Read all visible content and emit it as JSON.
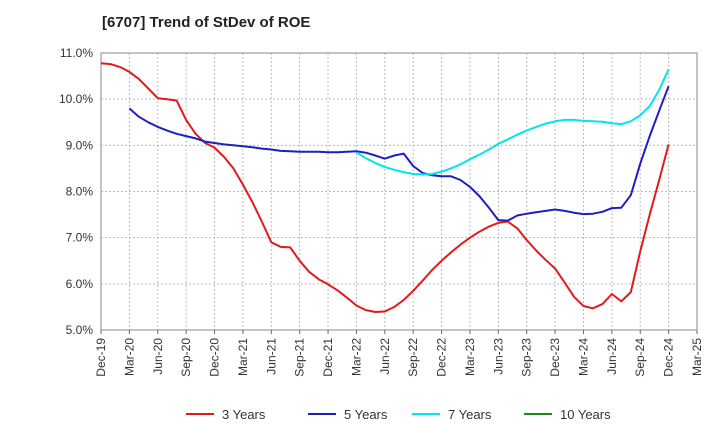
{
  "chart_data": {
    "type": "line",
    "title": "[6707]  Trend of StDev of ROE",
    "xlabel": "",
    "ylabel": "",
    "ylim": [
      5.0,
      11.0
    ],
    "grid": true,
    "legend_position": "bottom",
    "x_tick_labels": [
      "Dec-19",
      "Mar-20",
      "Jun-20",
      "Sep-20",
      "Dec-20",
      "Mar-21",
      "Jun-21",
      "Sep-21",
      "Dec-21",
      "Mar-22",
      "Jun-22",
      "Sep-22",
      "Dec-22",
      "Mar-23",
      "Jun-23",
      "Sep-23",
      "Dec-23",
      "Mar-24",
      "Jun-24",
      "Sep-24",
      "Dec-24",
      "Mar-25"
    ],
    "y_tick_labels": [
      "11.0%",
      "10.0%",
      "9.0%",
      "8.0%",
      "7.0%",
      "6.0%",
      "5.0%"
    ],
    "y_ticks": [
      11.0,
      10.0,
      9.0,
      8.0,
      7.0,
      6.0,
      5.0
    ],
    "series": [
      {
        "name": "3 Years",
        "color": "#e31a1c",
        "x": [
          "Dec-19",
          "Jan-20",
          "Feb-20",
          "Mar-20",
          "Apr-20",
          "May-20",
          "Jun-20",
          "Jul-20",
          "Aug-20",
          "Sep-20",
          "Oct-20",
          "Nov-20",
          "Dec-20",
          "Jan-21",
          "Feb-21",
          "Mar-21",
          "Apr-21",
          "May-21",
          "Jun-21",
          "Jul-21",
          "Aug-21",
          "Sep-21",
          "Oct-21",
          "Nov-21",
          "Dec-21",
          "Jan-22",
          "Feb-22",
          "Mar-22",
          "Apr-22",
          "May-22",
          "Jun-22",
          "Jul-22",
          "Aug-22",
          "Sep-22",
          "Oct-22",
          "Nov-22",
          "Dec-22",
          "Jan-23",
          "Feb-23",
          "Mar-23",
          "Apr-23",
          "May-23",
          "Jun-23",
          "Jul-23",
          "Aug-23",
          "Sep-23",
          "Oct-23",
          "Nov-23",
          "Dec-23",
          "Jan-24",
          "Feb-24",
          "Mar-24",
          "Apr-24",
          "May-24",
          "Jun-24",
          "Jul-24",
          "Aug-24",
          "Sep-24",
          "Oct-24",
          "Nov-24",
          "Dec-24"
        ],
        "values": [
          10.78,
          10.76,
          10.7,
          10.59,
          10.44,
          10.23,
          10.02,
          10.0,
          9.97,
          9.55,
          9.25,
          9.05,
          8.95,
          8.75,
          8.5,
          8.15,
          7.77,
          7.35,
          6.9,
          6.8,
          6.79,
          6.5,
          6.26,
          6.1,
          5.99,
          5.86,
          5.7,
          5.53,
          5.43,
          5.39,
          5.4,
          5.5,
          5.65,
          5.85,
          6.07,
          6.3,
          6.5,
          6.68,
          6.85,
          7.0,
          7.13,
          7.24,
          7.32,
          7.35,
          7.2,
          6.95,
          6.72,
          6.52,
          6.33,
          6.03,
          5.72,
          5.52,
          5.47,
          5.56,
          5.78,
          5.62,
          5.82,
          6.7,
          7.5,
          8.25,
          9.02
        ]
      },
      {
        "name": "5 Years",
        "color": "#1f1fbf",
        "x": [
          "Mar-20",
          "Apr-20",
          "May-20",
          "Jun-20",
          "Jul-20",
          "Aug-20",
          "Sep-20",
          "Oct-20",
          "Nov-20",
          "Dec-20",
          "Jan-21",
          "Feb-21",
          "Mar-21",
          "Apr-21",
          "May-21",
          "Jun-21",
          "Jul-21",
          "Aug-21",
          "Sep-21",
          "Oct-21",
          "Nov-21",
          "Dec-21",
          "Jan-22",
          "Feb-22",
          "Mar-22",
          "Apr-22",
          "May-22",
          "Jun-22",
          "Jul-22",
          "Aug-22",
          "Sep-22",
          "Oct-22",
          "Nov-22",
          "Dec-22",
          "Jan-23",
          "Feb-23",
          "Mar-23",
          "Apr-23",
          "May-23",
          "Jun-23",
          "Jul-23",
          "Aug-23",
          "Sep-23",
          "Oct-23",
          "Nov-23",
          "Dec-23",
          "Jan-24",
          "Feb-24",
          "Mar-24",
          "Apr-24",
          "May-24",
          "Jun-24",
          "Jul-24",
          "Aug-24",
          "Sep-24",
          "Oct-24",
          "Nov-24",
          "Dec-24"
        ],
        "values": [
          9.8,
          9.62,
          9.5,
          9.4,
          9.32,
          9.25,
          9.2,
          9.15,
          9.08,
          9.05,
          9.02,
          9.0,
          8.98,
          8.96,
          8.93,
          8.91,
          8.88,
          8.87,
          8.86,
          8.86,
          8.86,
          8.85,
          8.85,
          8.86,
          8.87,
          8.84,
          8.78,
          8.71,
          8.78,
          8.82,
          8.55,
          8.4,
          8.35,
          8.33,
          8.33,
          8.25,
          8.1,
          7.9,
          7.65,
          7.38,
          7.37,
          7.48,
          7.52,
          7.55,
          7.58,
          7.61,
          7.58,
          7.54,
          7.51,
          7.52,
          7.56,
          7.64,
          7.65,
          7.92,
          8.6,
          9.2,
          9.75,
          10.28
        ]
      },
      {
        "name": "7 Years",
        "color": "#00e5ee",
        "x": [
          "Mar-22",
          "Apr-22",
          "May-22",
          "Jun-22",
          "Jul-22",
          "Aug-22",
          "Sep-22",
          "Oct-22",
          "Nov-22",
          "Dec-22",
          "Jan-23",
          "Feb-23",
          "Mar-23",
          "Apr-23",
          "May-23",
          "Jun-23",
          "Jul-23",
          "Aug-23",
          "Sep-23",
          "Oct-23",
          "Nov-23",
          "Dec-23",
          "Jan-24",
          "Feb-24",
          "Mar-24",
          "Apr-24",
          "May-24",
          "Jun-24",
          "Jul-24",
          "Aug-24",
          "Sep-24",
          "Oct-24",
          "Nov-24",
          "Dec-24"
        ],
        "values": [
          8.85,
          8.72,
          8.62,
          8.53,
          8.47,
          8.42,
          8.38,
          8.37,
          8.38,
          8.43,
          8.5,
          8.59,
          8.7,
          8.8,
          8.91,
          9.03,
          9.13,
          9.23,
          9.32,
          9.4,
          9.47,
          9.52,
          9.55,
          9.55,
          9.53,
          9.52,
          9.51,
          9.48,
          9.46,
          9.52,
          9.65,
          9.85,
          10.2,
          10.65
        ]
      },
      {
        "name": "10 Years",
        "color": "#1a8c1a",
        "x": [],
        "values": []
      }
    ]
  }
}
